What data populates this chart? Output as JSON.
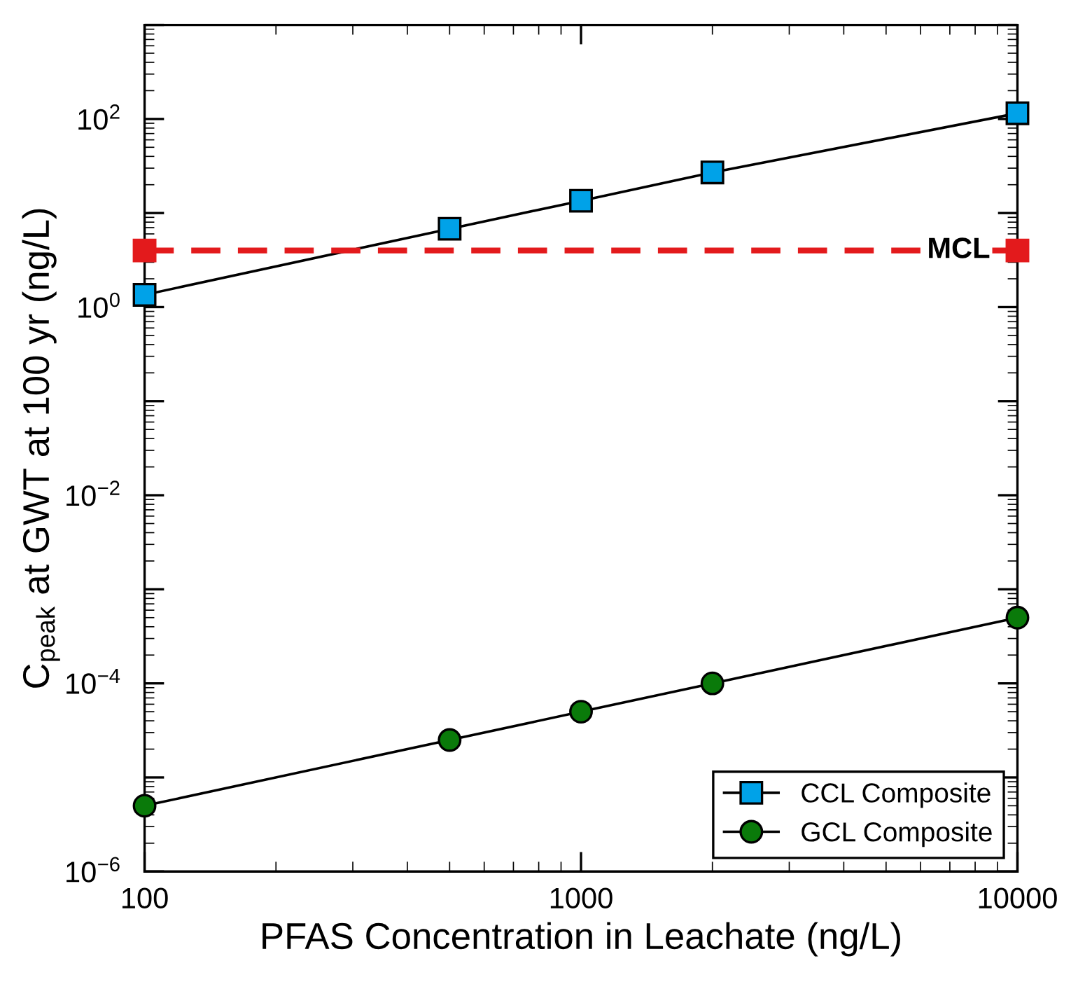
{
  "chart_data": {
    "type": "line",
    "xlabel": "PFAS Concentration in Leachate (ng/L)",
    "ylabel": "C$_{peak}$ at GWT at 100 yr (ng/L)",
    "log": "xy",
    "x": [
      100,
      500,
      1000,
      2000,
      10000
    ],
    "series": [
      {
        "name": "CCL Composite",
        "color": "#00a2e8",
        "marker": "square",
        "values": [
          1.35,
          6.8,
          13.5,
          27,
          115
        ]
      },
      {
        "name": "GCL Composite",
        "color": "#0a7a0a",
        "marker": "circle",
        "values": [
          5e-06,
          2.5e-05,
          5e-05,
          0.0001,
          0.0005
        ]
      },
      {
        "color": "#e31a1c",
        "marker": "square",
        "line_style": "dashed",
        "x": [
          100,
          10000
        ],
        "values": [
          4,
          4
        ]
      }
    ],
    "annotations": [
      {
        "text": "MCL",
        "x": 10000,
        "y": 4
      }
    ],
    "xlim": [
      100,
      10000
    ],
    "xticks": [
      100,
      1000,
      10000
    ],
    "ylim": [
      1e-06,
      1000
    ],
    "yticks": [
      {
        "value": 1e-06,
        "label": "10$^{−6}$"
      },
      {
        "value": 1e-05,
        "label": null
      },
      {
        "value": 0.0001,
        "label": "10$^{−4}$"
      },
      {
        "value": 0.001,
        "label": null
      },
      {
        "value": 0.01,
        "label": "10$^{−2}$"
      },
      {
        "value": 0.1,
        "label": null
      },
      {
        "value": 1,
        "label": "10$^{0}$"
      },
      {
        "value": 10,
        "label": null
      },
      {
        "value": 100,
        "label": "10$^{2}$"
      },
      {
        "value": 1000,
        "label": null
      }
    ],
    "legend": "bottom right",
    "grid": false
  }
}
